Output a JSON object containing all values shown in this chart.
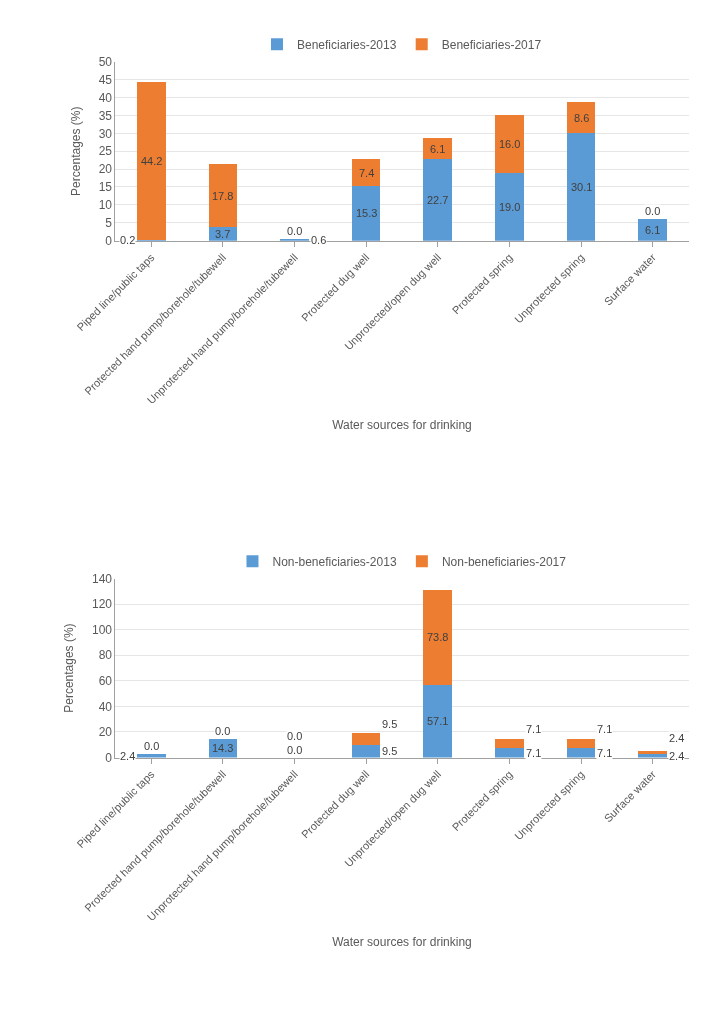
{
  "chart_data": [
    {
      "type": "bar",
      "stacked": true,
      "xlabel": "Water sources for drinking",
      "ylabel": "Percentages (%)",
      "categories": [
        "Piped line/public taps",
        "Protected hand pump/borehole/tubewell",
        "Unprotected hand pump/borehole/tubewell",
        "Protected dug well",
        "Unprotected/open dug well",
        "Protected spring",
        "Unprotected spring",
        "Surface water"
      ],
      "series": [
        {
          "name": "Beneficiaries-2013",
          "color": "#5b9bd5",
          "values": [
            0.2,
            3.7,
            0.6,
            15.3,
            22.7,
            19.0,
            30.1,
            6.1
          ],
          "value_labels": [
            "0.2",
            "3.7",
            "0.6",
            "15.3",
            "22.7",
            "19.0",
            "30.1",
            "6.1"
          ]
        },
        {
          "name": "Beneficiaries-2017",
          "color": "#ed7d31",
          "values": [
            44.2,
            17.8,
            0.0,
            7.4,
            6.1,
            16.0,
            8.6,
            0.0
          ],
          "value_labels": [
            "44.2",
            "17.8",
            "0.0",
            "7.4",
            "6.1",
            "16.0",
            "8.6",
            "0.0"
          ]
        }
      ],
      "ylim": [
        0,
        50
      ],
      "yticks": [
        0,
        5,
        10,
        15,
        20,
        25,
        30,
        35,
        40,
        45,
        50
      ],
      "grid": "y",
      "legend": "top"
    },
    {
      "type": "bar",
      "stacked": true,
      "xlabel": "Water sources for drinking",
      "ylabel": "Percentages (%)",
      "categories": [
        "Piped line/public taps",
        "Protected hand pump/borehole/tubewell",
        "Unprotected hand pump/borehole/tubewell",
        "Protected dug well",
        "Unprotected/open dug well",
        "Protected spring",
        "Unprotected spring",
        "Surface water"
      ],
      "series": [
        {
          "name": "Non-beneficiaries-2013",
          "color": "#5b9bd5",
          "values": [
            2.4,
            14.3,
            0.0,
            9.5,
            57.1,
            7.1,
            7.1,
            2.4
          ],
          "value_labels": [
            "2.4",
            "14.3",
            "0.0",
            "9.5",
            "57.1",
            "7.1",
            "7.1",
            "2.4"
          ]
        },
        {
          "name": "Non-beneficiaries-2017",
          "color": "#ed7d31",
          "values": [
            0.0,
            0.0,
            0.0,
            9.5,
            73.8,
            7.1,
            7.1,
            2.4
          ],
          "value_labels": [
            "0.0",
            "0.0",
            "0.0",
            "9.5",
            "73.8",
            "7.1",
            "7.1",
            "2.4"
          ]
        }
      ],
      "ylim": [
        0,
        140
      ],
      "yticks": [
        0,
        20,
        40,
        60,
        80,
        100,
        120,
        140
      ],
      "grid": "y",
      "legend": "top"
    }
  ]
}
